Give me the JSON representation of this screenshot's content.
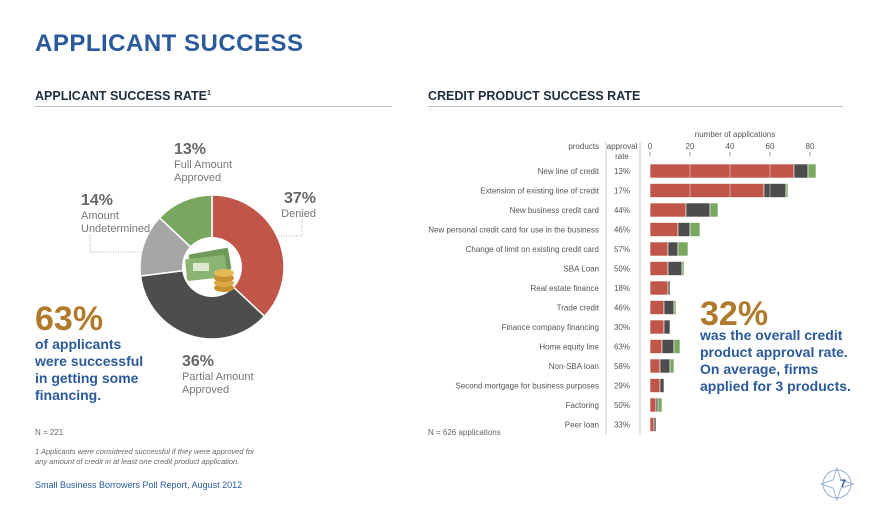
{
  "page": {
    "title": "APPLICANT SUCCESS",
    "footer": "Small Business Borrowers Poll Report, August 2012",
    "page_number": "7"
  },
  "left": {
    "section_title": "APPLICANT SUCCESS RATE",
    "section_sup": "1",
    "n_label": "N = 221",
    "footnote_line1": "1 Applicants were considered successful if they were approved for",
    "footnote_line2": "any amount of credit in at least one credit product application.",
    "big_stat": "63%",
    "stat_lines": [
      "of applicants",
      "were successful",
      "in getting some",
      "financing."
    ],
    "labels": {
      "full": {
        "pct": "13%",
        "line1": "Full Amount",
        "line2": "Approved"
      },
      "denied": {
        "pct": "37%",
        "line1": "Denied"
      },
      "partial": {
        "pct": "36%",
        "line1": "Partial Amount",
        "line2": "Approved"
      },
      "undetermined": {
        "pct": "14%",
        "line1": "Amount",
        "line2": "Undetermined"
      }
    }
  },
  "right": {
    "section_title": "CREDIT PRODUCT SUCCESS RATE",
    "n_label": "N = 626 applications",
    "big_stat": "32%",
    "stat_lines": [
      "was the overall credit",
      "product approval rate.",
      "On average, firms",
      "applied for 3 products."
    ],
    "col_products": "products",
    "col_rate_line1": "approval",
    "col_rate_line2": "rate"
  },
  "chart_data": [
    {
      "type": "pie",
      "title": "",
      "slices": [
        {
          "label": "Denied",
          "value": 37,
          "color": "#c0554a"
        },
        {
          "label": "Partial Amount Approved",
          "value": 36,
          "color": "#4d4d4d"
        },
        {
          "label": "Amount Undetermined",
          "value": 14,
          "color": "#a6a6a6"
        },
        {
          "label": "Full Amount Approved",
          "value": 13,
          "color": "#7aa760"
        }
      ]
    },
    {
      "type": "bar",
      "orientation": "horizontal",
      "stacked": true,
      "xlabel": "number of applications",
      "xlim": [
        0,
        85
      ],
      "xticks": [
        0,
        20,
        40,
        60,
        80
      ],
      "categories": [
        "New line of credit",
        "Extension of existing line of credit",
        "New business credit card",
        "New personal credit card for use in the business",
        "Change of limit on existing credit card",
        "SBA Loan",
        "Real estate finance",
        "Trade credit",
        "Finance company financing",
        "Home equity line",
        "Non-SBA loan",
        "Second mortgage for business purposes",
        "Factoring",
        "Peer loan"
      ],
      "approval_rate": [
        "13%",
        "17%",
        "44%",
        "46%",
        "57%",
        "50%",
        "18%",
        "46%",
        "30%",
        "63%",
        "58%",
        "29%",
        "50%",
        "33%"
      ],
      "series": [
        {
          "color": "#c0554a",
          "values": [
            72,
            57,
            18,
            14,
            9,
            9,
            9,
            7,
            7,
            6,
            5,
            5,
            3,
            2
          ]
        },
        {
          "color": "#4d4d4d",
          "values": [
            7,
            11,
            12,
            6,
            5,
            7,
            1,
            5,
            3,
            6,
            5,
            2,
            1,
            1
          ]
        },
        {
          "color": "#7aa760",
          "values": [
            4,
            1,
            4,
            5,
            5,
            1,
            0,
            1,
            0,
            3,
            2,
            0,
            2,
            0
          ]
        }
      ]
    }
  ]
}
